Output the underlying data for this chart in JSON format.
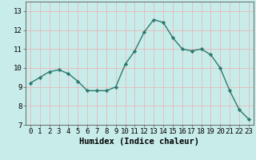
{
  "x": [
    0,
    1,
    2,
    3,
    4,
    5,
    6,
    7,
    8,
    9,
    10,
    11,
    12,
    13,
    14,
    15,
    16,
    17,
    18,
    19,
    20,
    21,
    22,
    23
  ],
  "y": [
    9.2,
    9.5,
    9.8,
    9.9,
    9.7,
    9.3,
    8.8,
    8.8,
    8.8,
    9.0,
    10.2,
    10.9,
    11.9,
    12.55,
    12.4,
    11.6,
    11.0,
    10.9,
    11.0,
    10.7,
    10.0,
    8.8,
    7.8,
    7.3
  ],
  "line_color": "#2d7a6e",
  "marker": "D",
  "marker_size": 2.2,
  "bg_color": "#c8ecea",
  "grid_color": "#e8b8b8",
  "axis_color": "#555555",
  "xlabel": "Humidex (Indice chaleur)",
  "xlabel_fontsize": 7.5,
  "tick_fontsize": 6.5,
  "xlim": [
    -0.5,
    23.5
  ],
  "ylim": [
    7,
    13.5
  ],
  "yticks": [
    7,
    8,
    9,
    10,
    11,
    12,
    13
  ],
  "xticks": [
    0,
    1,
    2,
    3,
    4,
    5,
    6,
    7,
    8,
    9,
    10,
    11,
    12,
    13,
    14,
    15,
    16,
    17,
    18,
    19,
    20,
    21,
    22,
    23
  ]
}
